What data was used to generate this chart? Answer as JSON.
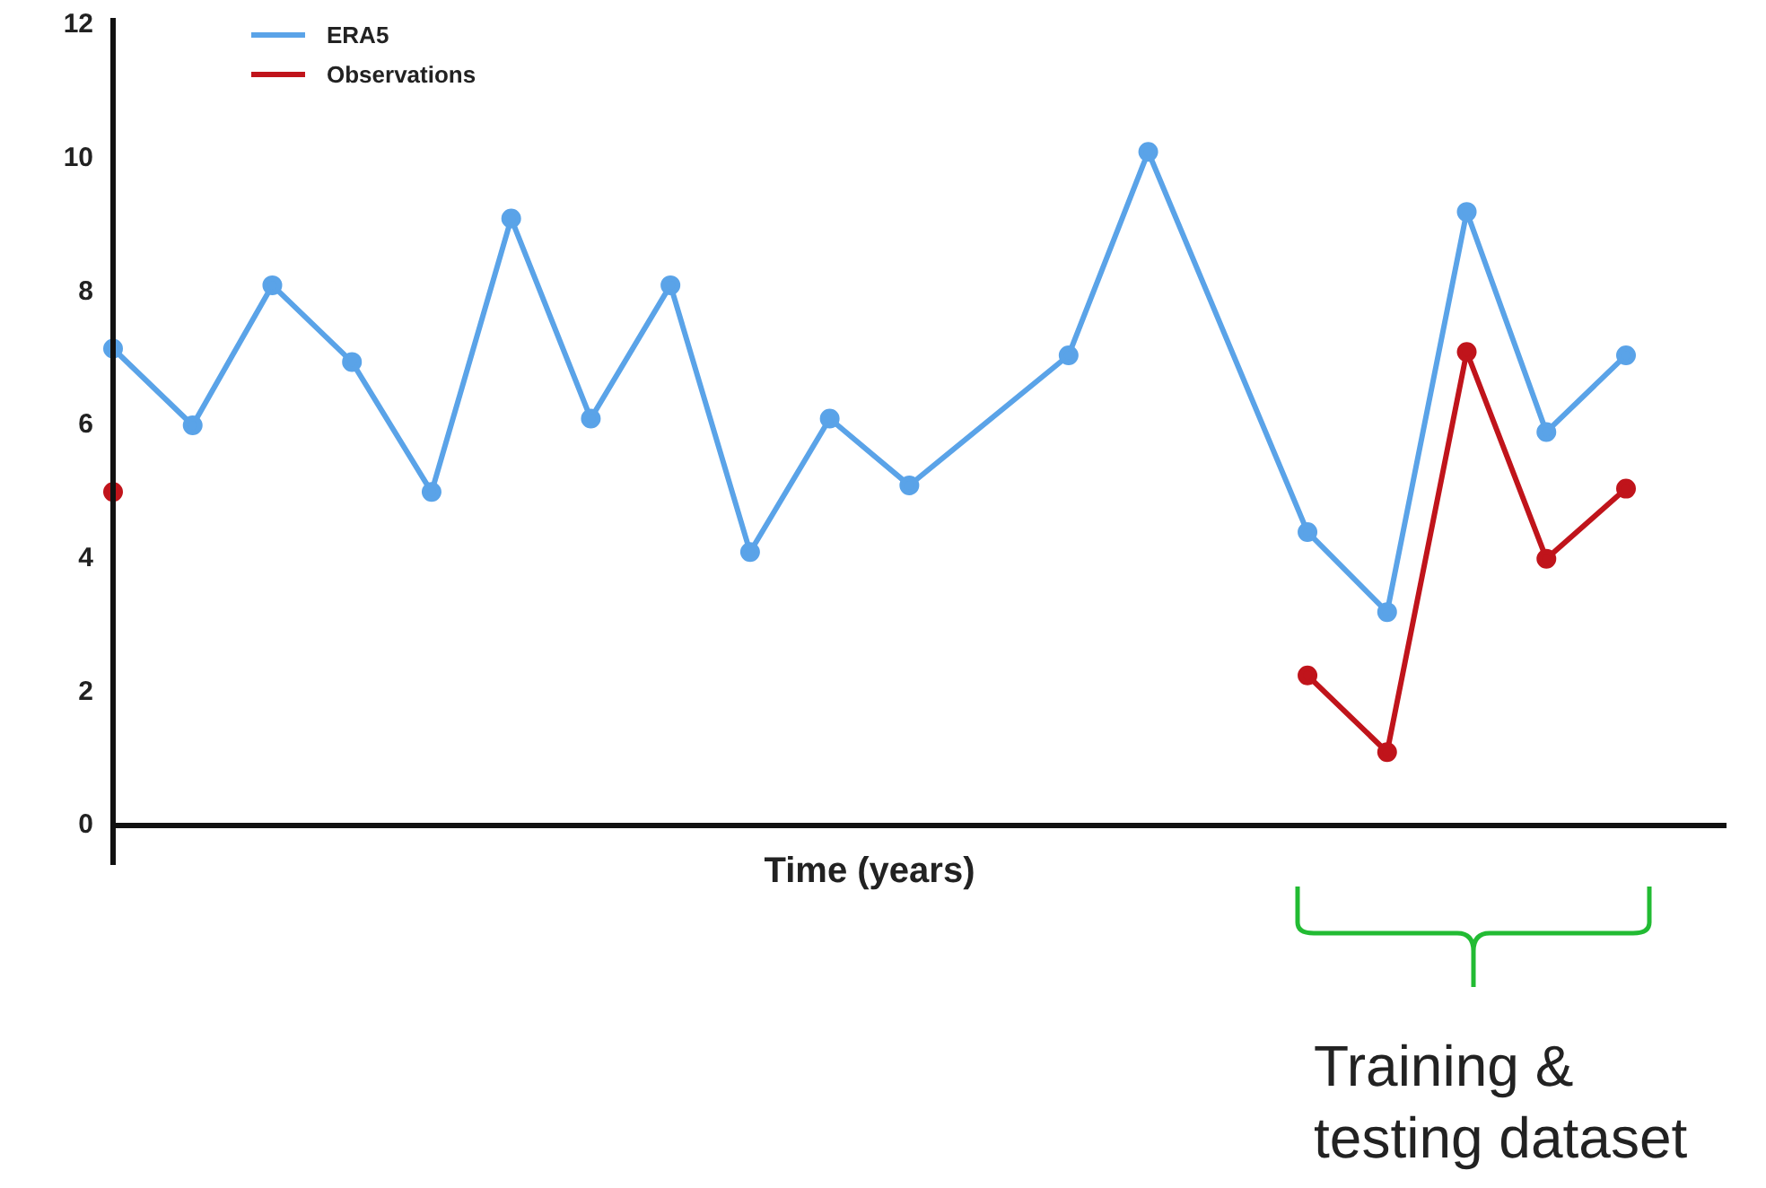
{
  "chart_data": {
    "type": "line",
    "xlabel": "Time (years)",
    "categories": [
      null,
      null,
      null,
      null,
      null,
      null,
      null,
      null,
      null,
      null,
      null,
      null,
      null,
      null,
      null,
      null,
      null,
      null,
      null,
      null
    ],
    "series": [
      {
        "name": "ERA5",
        "color": "#5aa3e8",
        "values": [
          7.15,
          6,
          8.1,
          6.95,
          5,
          9.1,
          6.1,
          8.1,
          4.1,
          6.1,
          5.1,
          null,
          7.05,
          10.1,
          null,
          4.4,
          3.2,
          9.2,
          5.9,
          7.05
        ]
      },
      {
        "name": "Observations",
        "color": "#c0141b",
        "values": [
          5,
          null,
          null,
          null,
          null,
          null,
          null,
          null,
          null,
          null,
          null,
          null,
          null,
          null,
          null,
          2.25,
          1.1,
          7.1,
          4,
          5.05
        ]
      }
    ],
    "ylim": [
      0,
      12
    ],
    "yticks": [
      0,
      2,
      4,
      6,
      8,
      10,
      12
    ],
    "grid": false,
    "legend": "top left",
    "marker": "circle",
    "line_style": "solid",
    "annotations": [
      "Training &\ntesting dataset"
    ]
  }
}
